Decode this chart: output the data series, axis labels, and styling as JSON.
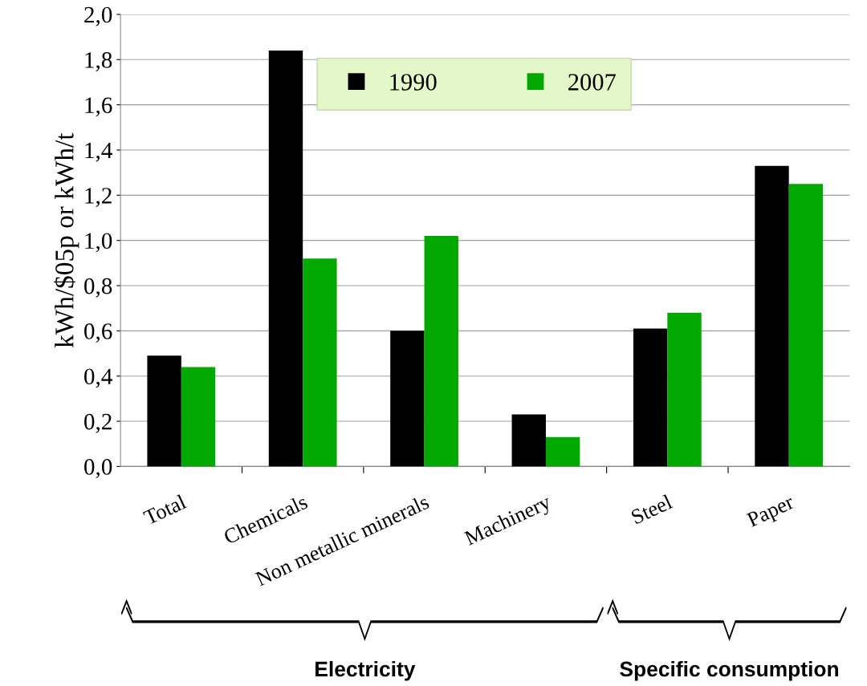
{
  "chart_data": {
    "type": "bar",
    "ylabel": "kWh/$05p or kWh/t",
    "categories": [
      "Total",
      "Chemicals",
      "Non metallic minerals",
      "Machinery",
      "Steel",
      "Paper"
    ],
    "series": [
      {
        "name": "1990",
        "color": "#000000",
        "values": [
          0.49,
          1.84,
          0.6,
          0.23,
          0.61,
          1.33
        ]
      },
      {
        "name": "2007",
        "color": "#00a800",
        "values": [
          0.44,
          0.92,
          1.02,
          0.13,
          0.68,
          1.25
        ]
      }
    ],
    "ylim": [
      0,
      2
    ],
    "yticks": [
      {
        "value": 0,
        "label": "0,0"
      },
      {
        "value": 0.2,
        "label": "0,2"
      },
      {
        "value": 0.4,
        "label": "0,4"
      },
      {
        "value": 0.6,
        "label": "0,6"
      },
      {
        "value": 0.8,
        "label": "0,8"
      },
      {
        "value": 1.0,
        "label": "1,0"
      },
      {
        "value": 1.2,
        "label": "1,2"
      },
      {
        "value": 1.4,
        "label": "1,4"
      },
      {
        "value": 1.6,
        "label": "1,6"
      },
      {
        "value": 1.8,
        "label": "1,8"
      },
      {
        "value": 2.0,
        "label": "2,0"
      }
    ],
    "grid": "y",
    "legend": "top",
    "annotations": [
      "Electricity",
      "Specific consumption"
    ]
  }
}
